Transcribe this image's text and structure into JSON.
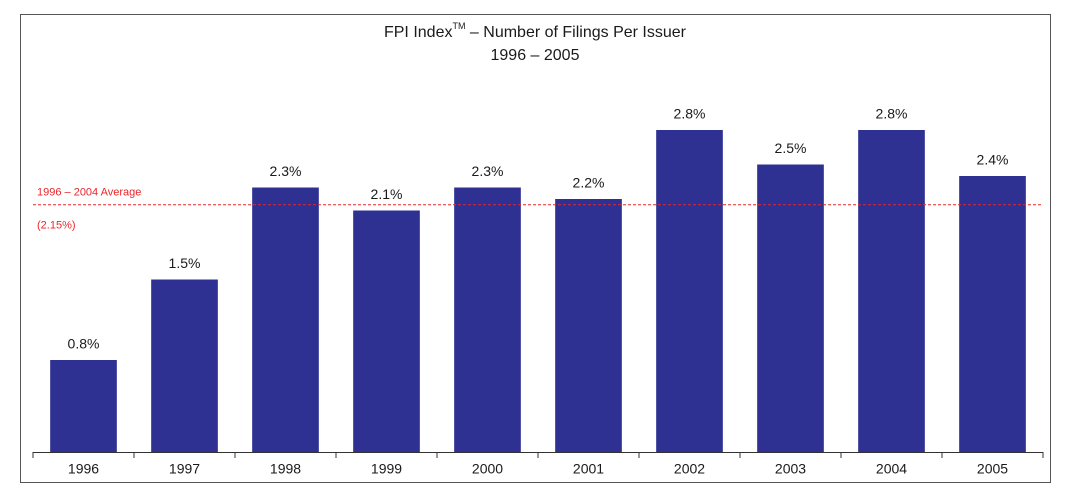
{
  "chart_data": {
    "type": "bar",
    "title": "FPI Index",
    "title_superscript": "TM",
    "title_suffix": " – Number of Filings Per Issuer",
    "subtitle": "1996 – 2005",
    "categories": [
      "1996",
      "1997",
      "1998",
      "1999",
      "2000",
      "2001",
      "2002",
      "2003",
      "2004",
      "2005"
    ],
    "values": [
      0.8,
      1.5,
      2.3,
      2.1,
      2.3,
      2.2,
      2.8,
      2.5,
      2.8,
      2.4
    ],
    "value_labels": [
      "0.8%",
      "1.5%",
      "2.3%",
      "2.1%",
      "2.3%",
      "2.2%",
      "2.8%",
      "2.5%",
      "2.8%",
      "2.4%"
    ],
    "color": "#2e3192",
    "ylim": [
      0,
      3
    ],
    "average": {
      "value": 2.15,
      "label": "1996 – 2004 Average",
      "value_label": "(2.15%)",
      "color": "#e8262b"
    }
  }
}
